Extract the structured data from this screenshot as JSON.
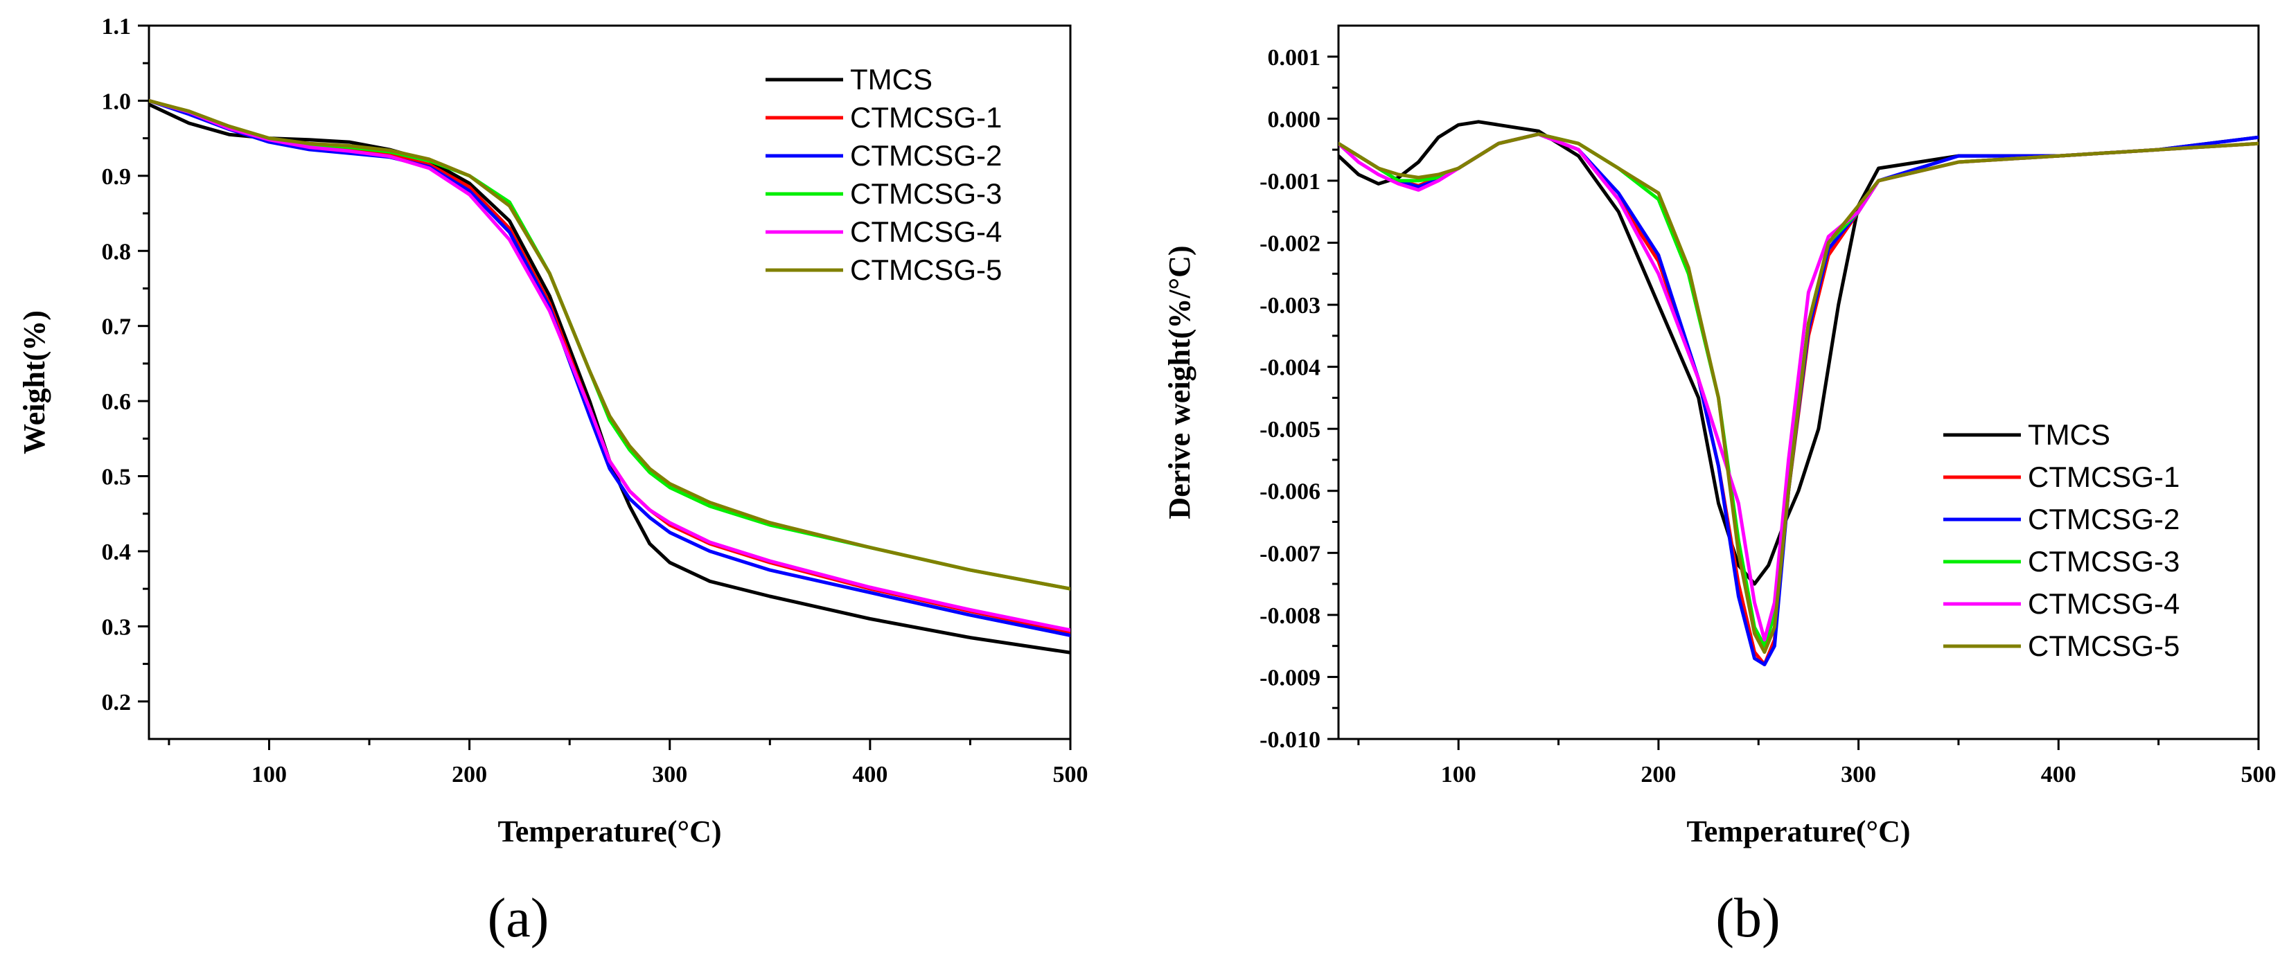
{
  "figure": {
    "panels": [
      "(a)",
      "(b)"
    ]
  },
  "series_colors": {
    "TMCS": "#000000",
    "CTMCSG-1": "#ff0000",
    "CTMCSG-2": "#0000ff",
    "CTMCSG-3": "#00ee00",
    "CTMCSG-4": "#ff00ff",
    "CTMCSG-5": "#808000"
  },
  "chart_data": [
    {
      "type": "line",
      "panel_label": "(a)",
      "title": "",
      "xlabel": "Temperature(°C)",
      "ylabel": "Weight(%)",
      "xlim": [
        40,
        500
      ],
      "ylim": [
        0.15,
        1.1
      ],
      "xticks": [
        100,
        200,
        300,
        400,
        500
      ],
      "yticks": [
        0.2,
        0.3,
        0.4,
        0.5,
        0.6,
        0.7,
        0.8,
        0.9,
        1.0,
        1.1
      ],
      "ytick_labels": [
        "0.2",
        "0.3",
        "0.4",
        "0.5",
        "0.6",
        "0.7",
        "0.8",
        "0.9",
        "1.0",
        "1.1"
      ],
      "legend_position": "top-right",
      "grid": false,
      "series": [
        {
          "name": "TMCS",
          "x": [
            40,
            60,
            80,
            100,
            120,
            140,
            160,
            180,
            200,
            220,
            240,
            260,
            270,
            280,
            290,
            300,
            320,
            350,
            400,
            450,
            500
          ],
          "y": [
            0.995,
            0.97,
            0.955,
            0.95,
            0.948,
            0.945,
            0.935,
            0.92,
            0.89,
            0.84,
            0.74,
            0.6,
            0.52,
            0.46,
            0.41,
            0.385,
            0.36,
            0.34,
            0.31,
            0.285,
            0.265
          ]
        },
        {
          "name": "CTMCSG-1",
          "x": [
            40,
            60,
            80,
            100,
            120,
            140,
            160,
            180,
            200,
            220,
            240,
            260,
            270,
            280,
            290,
            300,
            320,
            350,
            400,
            450,
            500
          ],
          "y": [
            1.0,
            0.985,
            0.965,
            0.948,
            0.94,
            0.935,
            0.928,
            0.915,
            0.885,
            0.83,
            0.73,
            0.59,
            0.52,
            0.48,
            0.455,
            0.435,
            0.41,
            0.385,
            0.35,
            0.32,
            0.292
          ]
        },
        {
          "name": "CTMCSG-2",
          "x": [
            40,
            60,
            80,
            100,
            120,
            140,
            160,
            180,
            200,
            220,
            240,
            260,
            270,
            280,
            290,
            300,
            320,
            350,
            400,
            450,
            500
          ],
          "y": [
            1.0,
            0.982,
            0.962,
            0.945,
            0.935,
            0.93,
            0.925,
            0.912,
            0.88,
            0.825,
            0.725,
            0.58,
            0.51,
            0.47,
            0.445,
            0.425,
            0.4,
            0.375,
            0.345,
            0.315,
            0.288
          ]
        },
        {
          "name": "CTMCSG-3",
          "x": [
            40,
            60,
            80,
            100,
            120,
            140,
            160,
            180,
            200,
            220,
            240,
            260,
            270,
            280,
            290,
            300,
            320,
            350,
            400,
            450,
            500
          ],
          "y": [
            1.0,
            0.985,
            0.965,
            0.95,
            0.942,
            0.938,
            0.932,
            0.92,
            0.9,
            0.865,
            0.77,
            0.64,
            0.575,
            0.535,
            0.505,
            0.485,
            0.46,
            0.435,
            0.405,
            0.375,
            0.35
          ]
        },
        {
          "name": "CTMCSG-4",
          "x": [
            40,
            60,
            80,
            100,
            120,
            140,
            160,
            180,
            200,
            220,
            240,
            260,
            270,
            280,
            290,
            300,
            320,
            350,
            400,
            450,
            500
          ],
          "y": [
            1.0,
            0.985,
            0.963,
            0.948,
            0.938,
            0.933,
            0.926,
            0.91,
            0.875,
            0.815,
            0.72,
            0.59,
            0.52,
            0.48,
            0.455,
            0.438,
            0.412,
            0.387,
            0.352,
            0.322,
            0.295
          ]
        },
        {
          "name": "CTMCSG-5",
          "x": [
            40,
            60,
            80,
            100,
            120,
            140,
            160,
            180,
            200,
            220,
            240,
            260,
            270,
            280,
            290,
            300,
            320,
            350,
            400,
            450,
            500
          ],
          "y": [
            1.0,
            0.986,
            0.966,
            0.95,
            0.943,
            0.94,
            0.934,
            0.922,
            0.9,
            0.86,
            0.77,
            0.64,
            0.58,
            0.54,
            0.51,
            0.49,
            0.465,
            0.438,
            0.405,
            0.375,
            0.35
          ]
        }
      ]
    },
    {
      "type": "line",
      "panel_label": "(b)",
      "title": "",
      "xlabel": "Temperature(°C)",
      "ylabel": "Derive weight(%/°C)",
      "xlim": [
        40,
        500
      ],
      "ylim": [
        -0.01,
        0.0015
      ],
      "xticks": [
        100,
        200,
        300,
        400,
        500
      ],
      "yticks": [
        -0.01,
        -0.009,
        -0.008,
        -0.007,
        -0.006,
        -0.005,
        -0.004,
        -0.003,
        -0.002,
        -0.001,
        0.0,
        0.001
      ],
      "ytick_labels": [
        "-0.010",
        "-0.009",
        "-0.008",
        "-0.007",
        "-0.006",
        "-0.005",
        "-0.004",
        "-0.003",
        "-0.002",
        "-0.001",
        "0.000",
        "0.001"
      ],
      "legend_position": "bottom-right",
      "grid": false,
      "series": [
        {
          "name": "TMCS",
          "x": [
            40,
            50,
            60,
            70,
            80,
            90,
            100,
            110,
            120,
            140,
            160,
            180,
            200,
            220,
            230,
            240,
            248,
            255,
            262,
            270,
            280,
            290,
            300,
            310,
            350,
            400,
            450,
            500
          ],
          "y": [
            -0.0006,
            -0.0009,
            -0.00105,
            -0.00095,
            -0.0007,
            -0.0003,
            -0.0001,
            -5e-05,
            -0.0001,
            -0.0002,
            -0.0006,
            -0.0015,
            -0.003,
            -0.0045,
            -0.0062,
            -0.0072,
            -0.0075,
            -0.0072,
            -0.0066,
            -0.006,
            -0.005,
            -0.003,
            -0.0014,
            -0.0008,
            -0.0006,
            -0.0006,
            -0.0005,
            -0.0003
          ]
        },
        {
          "name": "CTMCSG-1",
          "x": [
            40,
            50,
            60,
            70,
            80,
            90,
            100,
            120,
            140,
            160,
            180,
            200,
            220,
            230,
            240,
            248,
            253,
            258,
            265,
            275,
            285,
            300,
            310,
            350,
            400,
            450,
            500
          ],
          "y": [
            -0.0004,
            -0.0006,
            -0.0008,
            -0.001,
            -0.00108,
            -0.00095,
            -0.0008,
            -0.0004,
            -0.00025,
            -0.0005,
            -0.0013,
            -0.0023,
            -0.0042,
            -0.0056,
            -0.0075,
            -0.0086,
            -0.0088,
            -0.0084,
            -0.006,
            -0.0035,
            -0.0022,
            -0.0015,
            -0.001,
            -0.0007,
            -0.0006,
            -0.0005,
            -0.0004
          ]
        },
        {
          "name": "CTMCSG-2",
          "x": [
            40,
            50,
            60,
            70,
            80,
            90,
            100,
            120,
            140,
            160,
            180,
            200,
            220,
            230,
            240,
            248,
            253,
            258,
            265,
            275,
            285,
            300,
            310,
            350,
            400,
            450,
            500
          ],
          "y": [
            -0.0004,
            -0.0006,
            -0.0008,
            -0.001,
            -0.0011,
            -0.00098,
            -0.0008,
            -0.0004,
            -0.00025,
            -0.0005,
            -0.0012,
            -0.0022,
            -0.0042,
            -0.0056,
            -0.0077,
            -0.0087,
            -0.0088,
            -0.0085,
            -0.006,
            -0.0034,
            -0.0021,
            -0.0015,
            -0.001,
            -0.0006,
            -0.0006,
            -0.0005,
            -0.0003
          ]
        },
        {
          "name": "CTMCSG-3",
          "x": [
            40,
            50,
            60,
            70,
            80,
            90,
            100,
            120,
            140,
            160,
            180,
            200,
            215,
            230,
            240,
            248,
            253,
            258,
            265,
            275,
            285,
            300,
            310,
            350,
            400,
            450,
            500
          ],
          "y": [
            -0.0004,
            -0.0006,
            -0.0008,
            -0.001,
            -0.001,
            -0.00095,
            -0.0008,
            -0.0004,
            -0.00025,
            -0.0004,
            -0.0008,
            -0.0013,
            -0.0025,
            -0.0045,
            -0.0068,
            -0.0082,
            -0.0085,
            -0.008,
            -0.0058,
            -0.0033,
            -0.002,
            -0.0015,
            -0.001,
            -0.0007,
            -0.0006,
            -0.0005,
            -0.0004
          ]
        },
        {
          "name": "CTMCSG-4",
          "x": [
            40,
            50,
            60,
            70,
            80,
            90,
            100,
            120,
            140,
            160,
            180,
            200,
            220,
            230,
            240,
            248,
            253,
            258,
            265,
            275,
            285,
            300,
            310,
            350,
            400,
            450,
            500
          ],
          "y": [
            -0.0004,
            -0.0007,
            -0.0009,
            -0.00105,
            -0.00115,
            -0.001,
            -0.0008,
            -0.0004,
            -0.00025,
            -0.0005,
            -0.0013,
            -0.0025,
            -0.0042,
            -0.0052,
            -0.0062,
            -0.0078,
            -0.0084,
            -0.0078,
            -0.0055,
            -0.0028,
            -0.0019,
            -0.0015,
            -0.001,
            -0.0007,
            -0.0006,
            -0.0005,
            -0.0004
          ]
        },
        {
          "name": "CTMCSG-5",
          "x": [
            40,
            50,
            60,
            70,
            80,
            90,
            100,
            120,
            140,
            160,
            180,
            200,
            215,
            230,
            240,
            248,
            253,
            258,
            265,
            275,
            285,
            300,
            310,
            350,
            400,
            450,
            500
          ],
          "y": [
            -0.0004,
            -0.0006,
            -0.0008,
            -0.0009,
            -0.00095,
            -0.0009,
            -0.0008,
            -0.0004,
            -0.00025,
            -0.0004,
            -0.0008,
            -0.0012,
            -0.0024,
            -0.0045,
            -0.007,
            -0.0083,
            -0.0086,
            -0.0082,
            -0.006,
            -0.0033,
            -0.002,
            -0.0014,
            -0.001,
            -0.0007,
            -0.0006,
            -0.0005,
            -0.0004
          ]
        }
      ]
    }
  ]
}
